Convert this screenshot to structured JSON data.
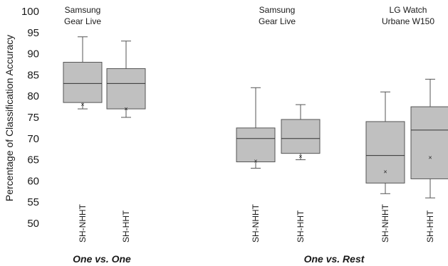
{
  "chart_data": {
    "type": "box",
    "ylabel": "Percentage of Classification Accuracy",
    "ylim": [
      50,
      100
    ],
    "yticks": [
      50,
      55,
      60,
      65,
      70,
      75,
      80,
      85,
      90,
      95,
      100
    ],
    "sections": [
      {
        "label": "One vs. One",
        "group_index": [
          0
        ]
      },
      {
        "label": "One vs. Rest",
        "group_index": [
          1,
          2
        ]
      }
    ],
    "groups": [
      {
        "label_lines": [
          "Samsung",
          "Gear Live"
        ],
        "boxes": [
          {
            "category": "SH-NHHT",
            "min": 77,
            "q1": 78.5,
            "median": 83,
            "q3": 88,
            "max": 94,
            "mean": 78
          },
          {
            "category": "SH-HHT",
            "min": 75,
            "q1": 77,
            "median": 83,
            "q3": 86.5,
            "max": 93,
            "mean": 77
          }
        ]
      },
      {
        "label_lines": [
          "Samsung",
          "Gear Live"
        ],
        "boxes": [
          {
            "category": "SH-NHHT",
            "min": 63,
            "q1": 64.5,
            "median": 70,
            "q3": 72.5,
            "max": 82,
            "mean": 64.7
          },
          {
            "category": "SH-HHT",
            "min": 65,
            "q1": 66.5,
            "median": 70,
            "q3": 74.5,
            "max": 78,
            "mean": 65.8
          }
        ]
      },
      {
        "label_lines": [
          "LG Watch",
          "Urbane W150"
        ],
        "boxes": [
          {
            "category": "SH-NHHT",
            "min": 57,
            "q1": 59.5,
            "median": 66,
            "q3": 74,
            "max": 81,
            "mean": 62.2
          },
          {
            "category": "SH-HHT",
            "min": 56,
            "q1": 60.5,
            "median": 72,
            "q3": 77.5,
            "max": 84,
            "mean": 65.5
          }
        ]
      }
    ]
  }
}
